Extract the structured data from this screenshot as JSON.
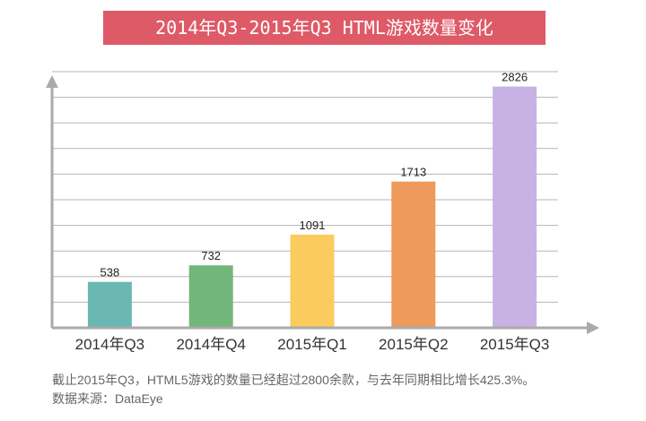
{
  "chart_data": {
    "type": "bar",
    "title": "2014年Q3-2015年Q3 HTML游戏数量变化",
    "categories": [
      "2014年Q3",
      "2014年Q4",
      "2015年Q1",
      "2015年Q2",
      "2015年Q3"
    ],
    "values": [
      538,
      732,
      1091,
      1713,
      2826
    ],
    "ylim": [
      0,
      3000
    ],
    "grid": true,
    "legend": "none",
    "bar_colors": [
      "#6bb8b2",
      "#72b67b",
      "#fbcb5e",
      "#ee9a5b",
      "#c6b3e4"
    ],
    "axis_color": "#aaaaaa",
    "grid_color": "#b5b5b5"
  },
  "footnote": {
    "line1": "截止2015年Q3，HTML5游戏的数量已经超过2800余款，与去年同期相比增长425.3%。",
    "line2": "数据来源：DataEye"
  },
  "title_bg": "#de5a67"
}
